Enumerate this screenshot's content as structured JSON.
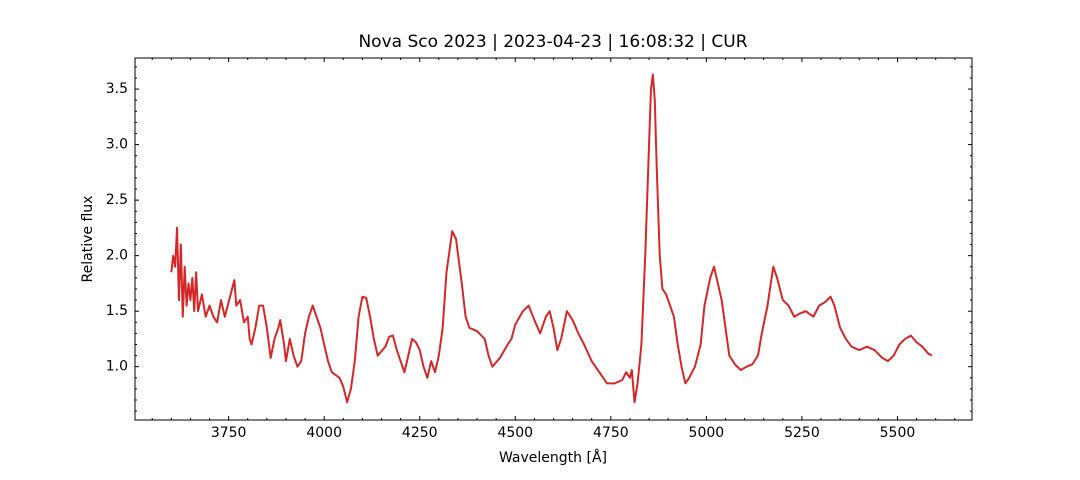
{
  "chart_data": {
    "type": "line",
    "title": "Nova Sco 2023 | 2023-04-23 | 16:08:32 | CUR",
    "xlabel": "Wavelength [Å]",
    "ylabel": "Relative flux",
    "color": "#d62728",
    "xlim": [
      3505,
      5695
    ],
    "ylim": [
      0.52,
      3.78
    ],
    "xticks": [
      3750,
      4000,
      4250,
      4500,
      4750,
      5000,
      5250,
      5500
    ],
    "yticks": [
      {
        "value": 1,
        "label": "1.0"
      },
      1.5,
      {
        "value": 2,
        "label": "2.0"
      },
      2.5,
      {
        "value": 3,
        "label": "3.0"
      },
      3.5
    ],
    "xminorticks": [
      3550,
      3600,
      3650,
      3700,
      3800,
      3850,
      3900,
      3950,
      4050,
      4100,
      4150,
      4200,
      4300,
      4350,
      4400,
      4450,
      4550,
      4600,
      4650,
      4700,
      4800,
      4850,
      4900,
      4950,
      5050,
      5100,
      5150,
      5200,
      5300,
      5350,
      5400,
      5450,
      5550,
      5600,
      5650
    ],
    "yminorticks": [
      0.6,
      0.7,
      0.8,
      0.9,
      1.1,
      1.2,
      1.3,
      1.4,
      1.6,
      1.7,
      1.8,
      1.9,
      2.1,
      2.2,
      2.3,
      2.4,
      2.6,
      2.7,
      2.8,
      2.9,
      3.1,
      3.2,
      3.3,
      3.4,
      3.6,
      3.7
    ],
    "x": [
      3600,
      3605,
      3610,
      3615,
      3620,
      3625,
      3630,
      3635,
      3640,
      3645,
      3650,
      3655,
      3660,
      3665,
      3670,
      3680,
      3690,
      3700,
      3710,
      3720,
      3730,
      3740,
      3765,
      3770,
      3780,
      3790,
      3800,
      3805,
      3810,
      3820,
      3830,
      3840,
      3850,
      3860,
      3870,
      3880,
      3885,
      3895,
      3900,
      3910,
      3920,
      3930,
      3940,
      3950,
      3960,
      3970,
      3980,
      3990,
      4000,
      4010,
      4020,
      4040,
      4050,
      4060,
      4070,
      4080,
      4090,
      4100,
      4110,
      4120,
      4130,
      4140,
      4160,
      4170,
      4180,
      4190,
      4200,
      4210,
      4220,
      4230,
      4240,
      4250,
      4260,
      4270,
      4280,
      4290,
      4300,
      4310,
      4320,
      4335,
      4345,
      4360,
      4370,
      4380,
      4400,
      4420,
      4430,
      4440,
      4460,
      4480,
      4490,
      4500,
      4520,
      4535,
      4550,
      4565,
      4580,
      4590,
      4600,
      4610,
      4620,
      4635,
      4650,
      4665,
      4680,
      4700,
      4720,
      4740,
      4760,
      4780,
      4790,
      4800,
      4805,
      4812,
      4820,
      4830,
      4840,
      4848,
      4855,
      4860,
      4865,
      4870,
      4878,
      4885,
      4895,
      4905,
      4915,
      4925,
      4935,
      4945,
      4955,
      4970,
      4985,
      4995,
      5010,
      5020,
      5030,
      5040,
      5050,
      5060,
      5075,
      5090,
      5105,
      5120,
      5135,
      5145,
      5160,
      5175,
      5185,
      5200,
      5215,
      5230,
      5245,
      5260,
      5280,
      5295,
      5310,
      5325,
      5335,
      5350,
      5365,
      5380,
      5400,
      5420,
      5440,
      5460,
      5475,
      5490,
      5505,
      5520,
      5535,
      5550,
      5565,
      5580,
      5590
    ],
    "values": [
      1.85,
      2.0,
      1.9,
      2.25,
      1.6,
      2.1,
      1.45,
      1.9,
      1.55,
      1.75,
      1.6,
      1.8,
      1.5,
      1.85,
      1.5,
      1.65,
      1.45,
      1.55,
      1.45,
      1.4,
      1.6,
      1.45,
      1.78,
      1.55,
      1.6,
      1.4,
      1.45,
      1.25,
      1.2,
      1.35,
      1.55,
      1.55,
      1.35,
      1.08,
      1.25,
      1.35,
      1.42,
      1.2,
      1.05,
      1.25,
      1.1,
      1.0,
      1.05,
      1.3,
      1.45,
      1.55,
      1.45,
      1.35,
      1.2,
      1.05,
      0.95,
      0.9,
      0.82,
      0.68,
      0.8,
      1.05,
      1.45,
      1.63,
      1.62,
      1.45,
      1.25,
      1.1,
      1.18,
      1.27,
      1.28,
      1.15,
      1.05,
      0.95,
      1.1,
      1.25,
      1.22,
      1.15,
      1.0,
      0.9,
      1.05,
      0.95,
      1.1,
      1.35,
      1.85,
      2.22,
      2.15,
      1.75,
      1.45,
      1.35,
      1.32,
      1.25,
      1.1,
      1.0,
      1.08,
      1.2,
      1.25,
      1.38,
      1.5,
      1.55,
      1.42,
      1.3,
      1.45,
      1.5,
      1.35,
      1.15,
      1.25,
      1.5,
      1.42,
      1.3,
      1.2,
      1.05,
      0.95,
      0.85,
      0.85,
      0.88,
      0.95,
      0.9,
      0.97,
      0.68,
      0.85,
      1.2,
      2.0,
      2.8,
      3.5,
      3.63,
      3.4,
      2.8,
      2.0,
      1.7,
      1.65,
      1.55,
      1.45,
      1.2,
      1.0,
      0.85,
      0.9,
      1.0,
      1.2,
      1.55,
      1.8,
      1.9,
      1.75,
      1.6,
      1.35,
      1.1,
      1.02,
      0.97,
      1.0,
      1.02,
      1.1,
      1.3,
      1.55,
      1.9,
      1.8,
      1.6,
      1.55,
      1.45,
      1.48,
      1.5,
      1.45,
      1.55,
      1.58,
      1.63,
      1.55,
      1.35,
      1.25,
      1.18,
      1.15,
      1.18,
      1.15,
      1.08,
      1.05,
      1.1,
      1.2,
      1.25,
      1.28,
      1.22,
      1.18,
      1.12,
      1.1
    ]
  }
}
